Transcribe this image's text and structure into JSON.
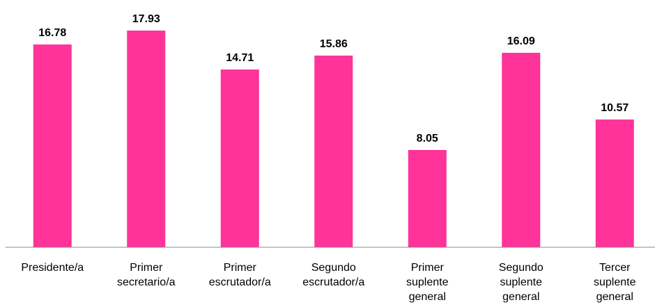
{
  "chart_data": {
    "type": "bar",
    "categories": [
      "Presidente/a",
      "Primer secretario/a",
      "Primer escrutador/a",
      "Segundo escrutador/a",
      "Primer suplente general",
      "Segundo suplente general",
      "Tercer suplente general"
    ],
    "values": [
      16.78,
      17.93,
      14.71,
      15.86,
      8.05,
      16.09,
      10.57
    ],
    "color": "#ff3399",
    "ylim": [
      0,
      20
    ]
  }
}
